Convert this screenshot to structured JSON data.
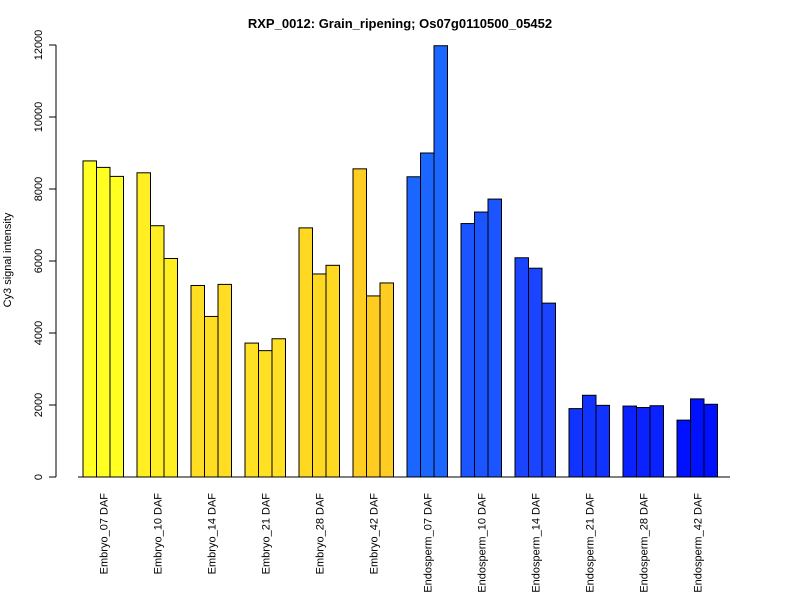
{
  "chart_data": {
    "type": "bar",
    "title": "RXP_0012: Grain_ripening; Os07g0110500_05452",
    "xlabel": "",
    "ylabel": "Cy3 signal intensity",
    "ylim": [
      0,
      12000
    ],
    "yticks": [
      0,
      2000,
      4000,
      6000,
      8000,
      10000,
      12000
    ],
    "grid": false,
    "categories": [
      "Embryo_07 DAF",
      "Embryo_10 DAF",
      "Embryo_14 DAF",
      "Embryo_21 DAF",
      "Embryo_28 DAF",
      "Embryo_42 DAF",
      "Endosperm_07 DAF",
      "Endosperm_10 DAF",
      "Endosperm_14 DAF",
      "Endosperm_21 DAF",
      "Endosperm_28 DAF",
      "Endosperm_42 DAF"
    ],
    "colors": [
      "#ffff22",
      "#ffee22",
      "#ffdd22",
      "#ffe022",
      "#ffd822",
      "#ffcc22",
      "#1a66ff",
      "#1a55ff",
      "#1a44ff",
      "#1133ff",
      "#0a22ff",
      "#0011ff"
    ],
    "values": [
      [
        8780,
        8600,
        8350
      ],
      [
        8450,
        6980,
        6070
      ],
      [
        5320,
        4460,
        5350
      ],
      [
        3720,
        3510,
        3840
      ],
      [
        6920,
        5640,
        5880
      ],
      [
        8560,
        5030,
        5390
      ],
      [
        8340,
        9000,
        11980
      ],
      [
        7040,
        7360,
        7720
      ],
      [
        6090,
        5800,
        4830
      ],
      [
        1900,
        2270,
        1990
      ],
      [
        1970,
        1930,
        1980
      ],
      [
        1580,
        2170,
        2020
      ]
    ]
  }
}
